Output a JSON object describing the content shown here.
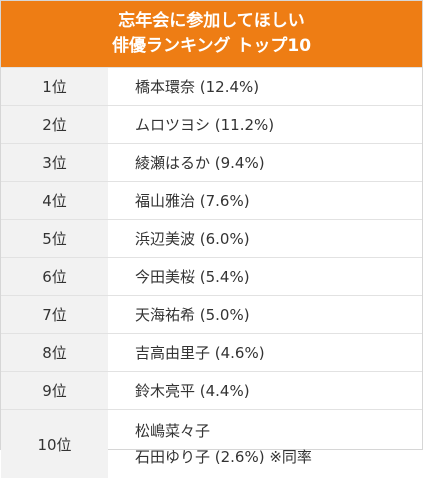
{
  "header": {
    "line1": "忘年会に参加してほしい",
    "line2": "俳優ランキング トップ10"
  },
  "rows": [
    {
      "rank": "1位",
      "name": "橋本環奈 (12.4%)"
    },
    {
      "rank": "2位",
      "name": "ムロツヨシ (11.2%)"
    },
    {
      "rank": "3位",
      "name": "綾瀬はるか (9.4%)"
    },
    {
      "rank": "4位",
      "name": "福山雅治 (7.6%)"
    },
    {
      "rank": "5位",
      "name": "浜辺美波 (6.0%)"
    },
    {
      "rank": "6位",
      "name": "今田美桜 (5.4%)"
    },
    {
      "rank": "7位",
      "name": "天海祐希 (5.0%)"
    },
    {
      "rank": "8位",
      "name": "吉高由里子 (4.6%)"
    },
    {
      "rank": "9位",
      "name": "鈴木亮平 (4.4%)"
    }
  ],
  "last_row": {
    "rank": "10位",
    "name_line1": "松嶋菜々子",
    "name_line2": "石田ゆり子 (2.6%) ※同率"
  },
  "colors": {
    "header_bg": "#ee7d14",
    "rank_bg": "#f2f2f2"
  }
}
